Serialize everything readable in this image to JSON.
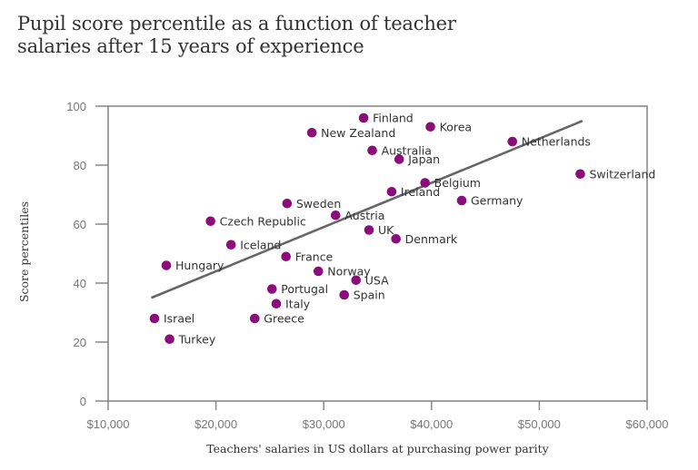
{
  "title_line1": "Pupil score percentile as a function of teacher",
  "title_line2": "salaries after 15 years of experience",
  "colors": {
    "point": "#8b0d7a",
    "trend": "#666666",
    "axis": "#888888"
  },
  "chart_data": {
    "type": "scatter",
    "title": "Pupil score percentile as a function of teacher salaries after 15 years of experience",
    "xlabel": "Teachers' salaries in US dollars at purchasing power parity",
    "ylabel": "Score percentiles",
    "xlim": [
      10000,
      60000
    ],
    "ylim": [
      0,
      100
    ],
    "x_ticks": [
      "$10,000",
      "$20,000",
      "$30,000",
      "$40,000",
      "$50,000",
      "$60,000"
    ],
    "y_ticks": [
      "0",
      "20",
      "40",
      "60",
      "80",
      "100"
    ],
    "grid": false,
    "points": [
      {
        "label": "Finland",
        "x": 33700,
        "y": 96
      },
      {
        "label": "Korea",
        "x": 39900,
        "y": 93
      },
      {
        "label": "New Zealand",
        "x": 28900,
        "y": 91
      },
      {
        "label": "Netherlands",
        "x": 47500,
        "y": 88
      },
      {
        "label": "Australia",
        "x": 34500,
        "y": 85
      },
      {
        "label": "Japan",
        "x": 37000,
        "y": 82
      },
      {
        "label": "Switzerland",
        "x": 53800,
        "y": 77
      },
      {
        "label": "Belgium",
        "x": 39400,
        "y": 74
      },
      {
        "label": "Ireland",
        "x": 36300,
        "y": 71
      },
      {
        "label": "Germany",
        "x": 42800,
        "y": 68
      },
      {
        "label": "Sweden",
        "x": 26600,
        "y": 67
      },
      {
        "label": "Austria",
        "x": 31100,
        "y": 63
      },
      {
        "label": "Czech Republic",
        "x": 19500,
        "y": 61
      },
      {
        "label": "UK",
        "x": 34200,
        "y": 58
      },
      {
        "label": "Denmark",
        "x": 36700,
        "y": 55
      },
      {
        "label": "Iceland",
        "x": 21400,
        "y": 53
      },
      {
        "label": "France",
        "x": 26500,
        "y": 49
      },
      {
        "label": "Hungary",
        "x": 15400,
        "y": 46
      },
      {
        "label": "Norway",
        "x": 29500,
        "y": 44
      },
      {
        "label": "USA",
        "x": 33000,
        "y": 41
      },
      {
        "label": "Portugal",
        "x": 25200,
        "y": 38
      },
      {
        "label": "Spain",
        "x": 31900,
        "y": 36
      },
      {
        "label": "Italy",
        "x": 25600,
        "y": 33
      },
      {
        "label": "Greece",
        "x": 23600,
        "y": 28
      },
      {
        "label": "Israel",
        "x": 14300,
        "y": 28
      },
      {
        "label": "Turkey",
        "x": 15700,
        "y": 21
      }
    ],
    "trend_line": {
      "x": [
        14000,
        54000
      ],
      "y": [
        35,
        95
      ]
    }
  }
}
